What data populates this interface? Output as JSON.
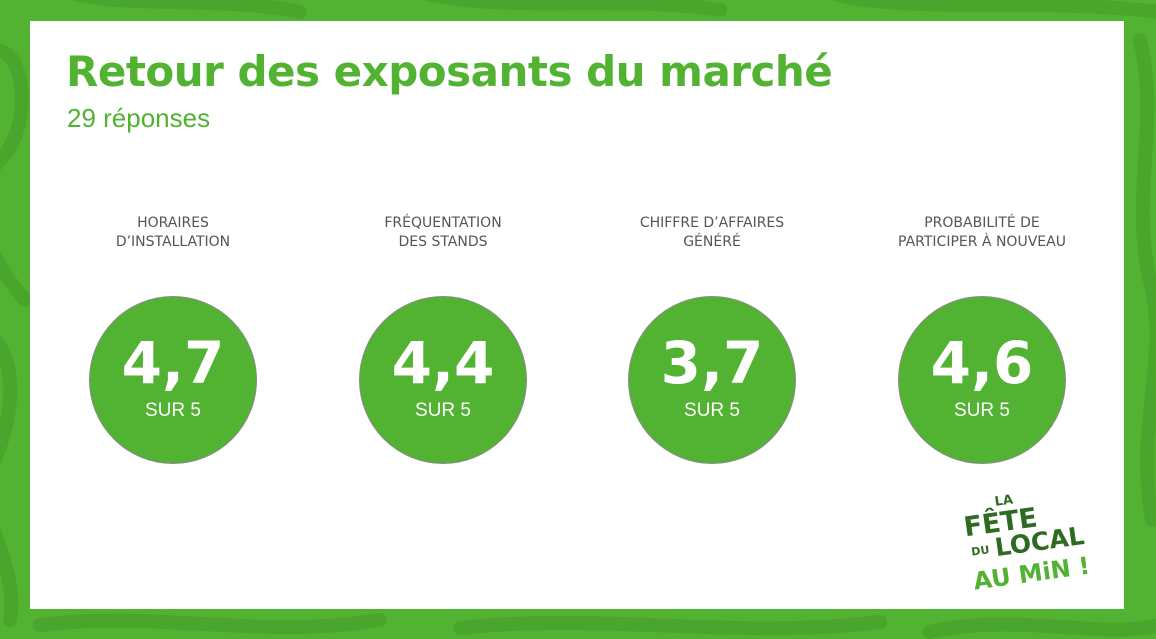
{
  "title": "Retour des exposants du marché",
  "subtitle": "29 réponses",
  "metrics": [
    {
      "label_line1": "HORAIRES",
      "label_line2": "D’INSTALLATION",
      "score": "4,7",
      "scale": "SUR 5",
      "value": 4.7,
      "max": 5
    },
    {
      "label_line1": "FRÉQUENTATION",
      "label_line2": "DES STANDS",
      "score": "4,4",
      "scale": "SUR 5",
      "value": 4.4,
      "max": 5
    },
    {
      "label_line1": "CHIFFRE D’AFFAIRES",
      "label_line2": "GÉNÉRÉ",
      "score": "3,7",
      "scale": "SUR 5",
      "value": 3.7,
      "max": 5
    },
    {
      "label_line1": "PROBABILITÉ DE",
      "label_line2": "PARTICIPER À NOUVEAU",
      "score": "4,6",
      "scale": "SUR 5",
      "value": 4.6,
      "max": 5
    }
  ],
  "logo": {
    "line1": "LA",
    "line2": "FÊTE",
    "line3": "DU",
    "line4": "LOCAL",
    "line5": "AU MiN !"
  },
  "colors": {
    "brand_green": "#52b232",
    "dark_green": "#2e6b21",
    "label_gray": "#555555",
    "card_white": "#ffffff"
  }
}
